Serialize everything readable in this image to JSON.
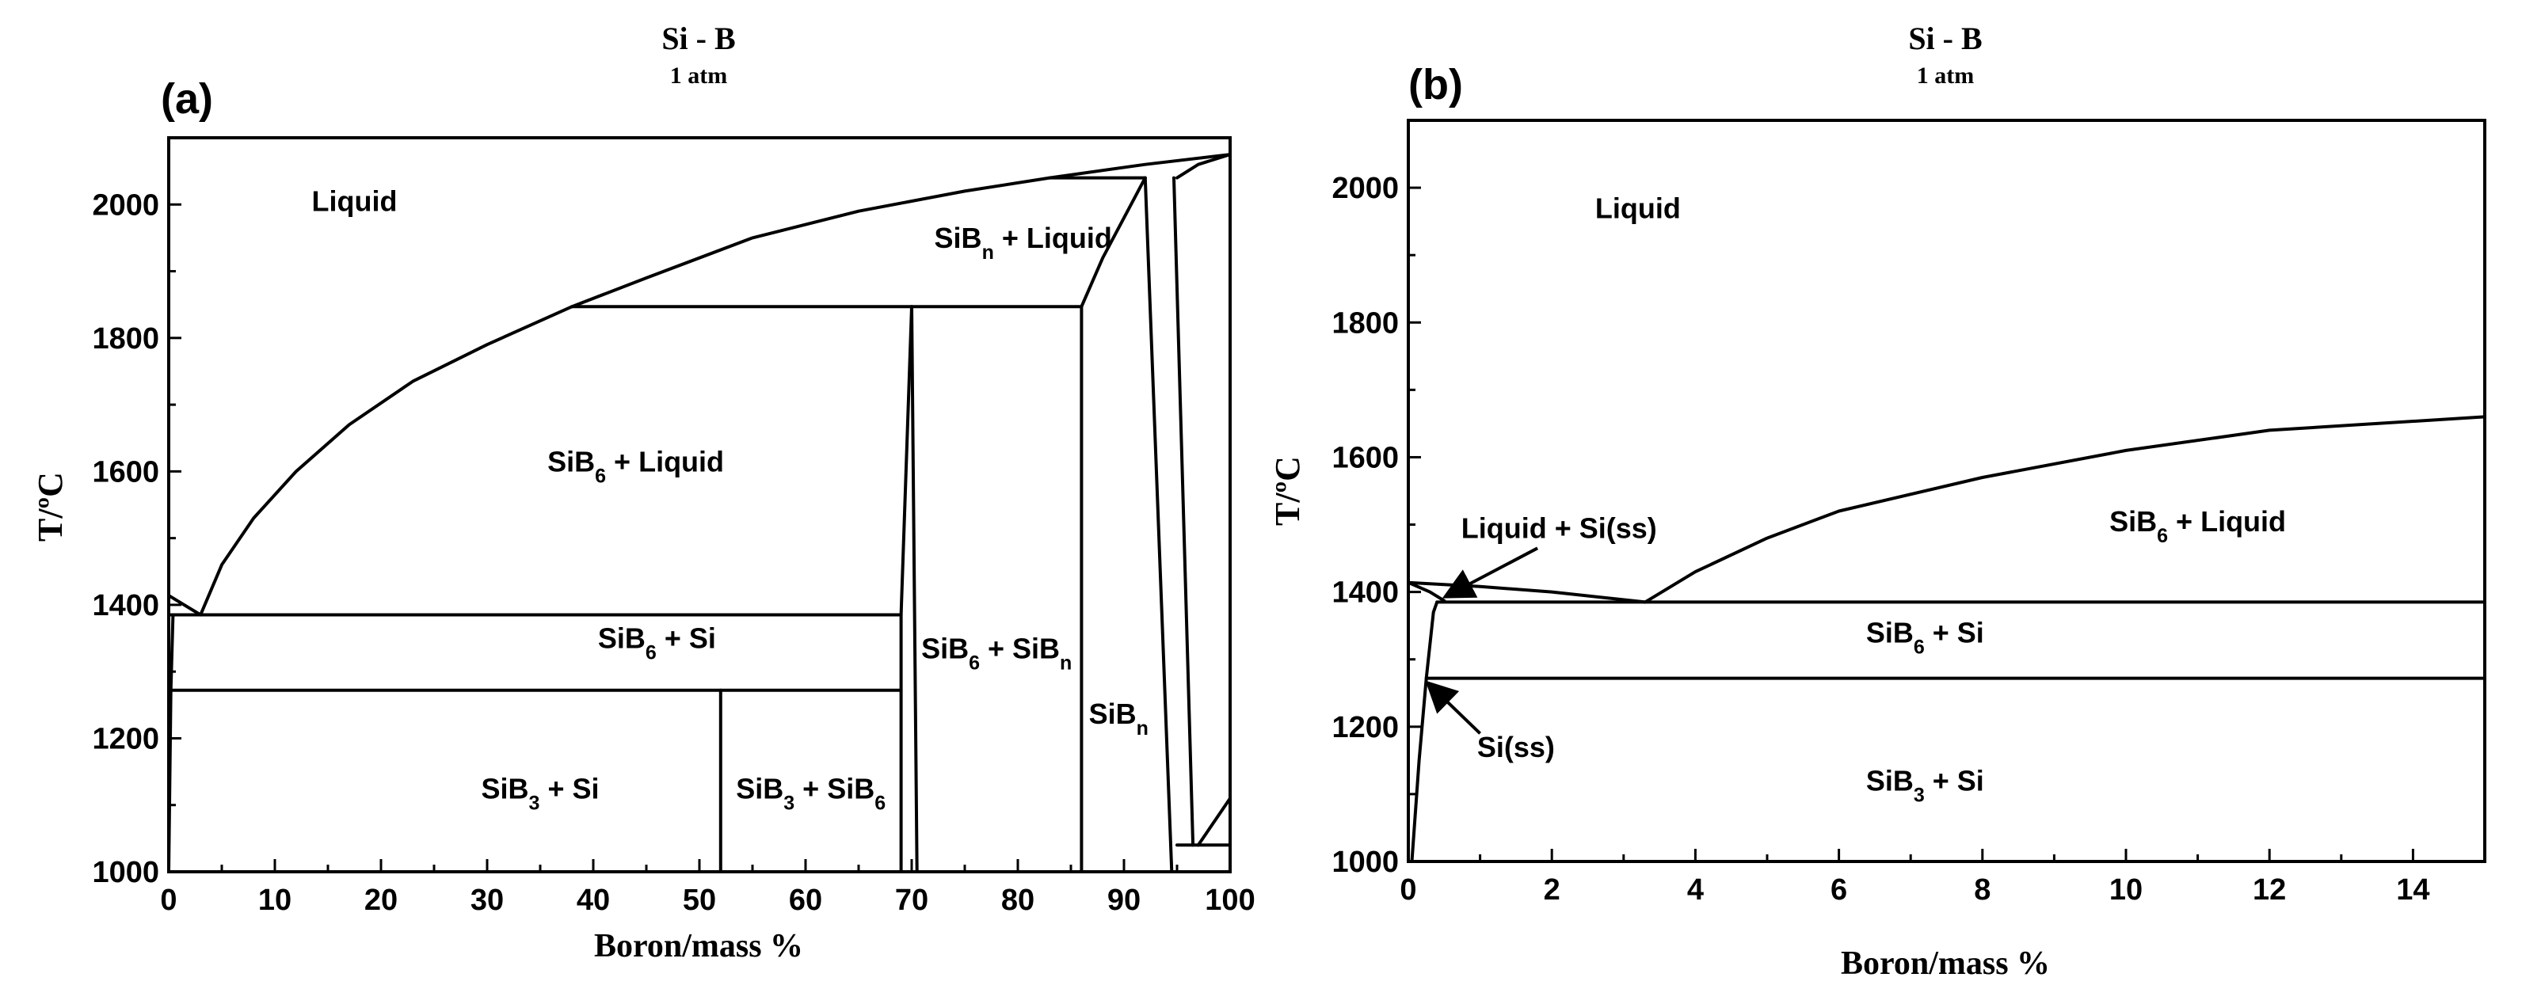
{
  "chart_data": [
    {
      "type": "line",
      "panel_label": "(a)",
      "title": "Si - B",
      "subtitle": "1 atm",
      "xlabel": "Boron/mass %",
      "ylabel": "T/ºC",
      "xlim": [
        0,
        100
      ],
      "ylim": [
        1000,
        2100
      ],
      "x_ticks": [
        "0",
        "10",
        "20",
        "30",
        "40",
        "50",
        "60",
        "70",
        "80",
        "90",
        "100"
      ],
      "y_ticks": [
        "1000",
        "1200",
        "1400",
        "1600",
        "1800",
        "2000"
      ],
      "grid": false,
      "series": [
        {
          "values": [
            [
              0,
              1414
            ],
            [
              3,
              1385
            ]
          ]
        },
        {
          "values": [
            [
              3,
              1385
            ],
            [
              5,
              1460
            ],
            [
              8,
              1530
            ],
            [
              12,
              1600
            ],
            [
              17,
              1670
            ],
            [
              23,
              1735
            ],
            [
              30,
              1790
            ],
            [
              38,
              1847
            ]
          ]
        },
        {
          "values": [
            [
              38,
              1847
            ],
            [
              45,
              1890
            ],
            [
              55,
              1950
            ],
            [
              65,
              1990
            ],
            [
              75,
              2020
            ],
            [
              83,
              2040
            ],
            [
              92,
              2060
            ],
            [
              100,
              2075
            ]
          ]
        },
        {
          "values": [
            [
              0,
              1000
            ],
            [
              0.2,
              1272
            ],
            [
              0.4,
              1385
            ]
          ]
        },
        {
          "values": [
            [
              0,
              1385
            ],
            [
              69,
              1385
            ]
          ]
        },
        {
          "values": [
            [
              0,
              1272
            ],
            [
              69,
              1272
            ]
          ]
        },
        {
          "values": [
            [
              38,
              1847
            ],
            [
              86,
              1847
            ]
          ]
        },
        {
          "values": [
            [
              83,
              2040
            ],
            [
              92,
              2040
            ]
          ]
        },
        {
          "values": [
            [
              95,
              2040
            ],
            [
              97,
              2060
            ],
            [
              100,
              2075
            ]
          ]
        },
        {
          "values": [
            [
              52,
              1000
            ],
            [
              52,
              1272
            ]
          ]
        },
        {
          "values": [
            [
              69,
              1000
            ],
            [
              69,
              1385
            ]
          ]
        },
        {
          "values": [
            [
              69,
              1385
            ],
            [
              70,
              1847
            ]
          ]
        },
        {
          "values": [
            [
              70,
              1847
            ],
            [
              70.5,
              1000
            ]
          ]
        },
        {
          "values": [
            [
              86,
              1847
            ],
            [
              86,
              1000
            ]
          ]
        },
        {
          "values": [
            [
              86,
              1847
            ],
            [
              88,
              1920
            ],
            [
              92,
              2040
            ]
          ]
        },
        {
          "values": [
            [
              92,
              2040
            ],
            [
              94.5,
              1000
            ]
          ]
        },
        {
          "values": [
            [
              94.7,
              2040
            ],
            [
              96.5,
              1040
            ]
          ]
        },
        {
          "values": [
            [
              95,
              1040
            ],
            [
              100,
              1040
            ]
          ]
        },
        {
          "values": [
            [
              97,
              1040
            ],
            [
              100,
              1110
            ]
          ]
        }
      ],
      "region_labels": [
        {
          "main": "Liquid",
          "sub": "",
          "after": "",
          "x": 17.5,
          "y": 1990
        },
        {
          "main": "SiB",
          "sub": "n",
          "after": " + Liquid",
          "x": 80.5,
          "y": 1935
        },
        {
          "main": "SiB",
          "sub": "6",
          "after": " + Liquid",
          "x": 44,
          "y": 1600
        },
        {
          "main": "SiB",
          "sub": "6",
          "after": " + Si",
          "x": 46,
          "y": 1335
        },
        {
          "main": "SiB",
          "sub": "6",
          "after": " + SiB",
          "after_sub": "n",
          "x": 78,
          "y": 1320
        },
        {
          "main": "SiB",
          "sub": "n",
          "after": "",
          "x": 89.5,
          "y": 1222
        },
        {
          "main": "SiB",
          "sub": "3",
          "after": " + Si",
          "x": 35,
          "y": 1110
        },
        {
          "main": "SiB",
          "sub": "3",
          "after": " + SiB",
          "after_sub": "6",
          "x": 60.5,
          "y": 1110
        }
      ]
    },
    {
      "type": "line",
      "panel_label": "(b)",
      "title": "Si - B",
      "subtitle": "1 atm",
      "xlabel": "Boron/mass %",
      "ylabel": "T/ºC",
      "xlim": [
        0,
        15
      ],
      "ylim": [
        1000,
        2100
      ],
      "x_ticks": [
        "0",
        "2",
        "4",
        "6",
        "8",
        "10",
        "12",
        "14"
      ],
      "y_ticks": [
        "1000",
        "1200",
        "1400",
        "1600",
        "1800",
        "2000"
      ],
      "grid": false,
      "series": [
        {
          "values": [
            [
              0,
              1414
            ],
            [
              0.3,
              1400
            ],
            [
              0.5,
              1387
            ]
          ]
        },
        {
          "values": [
            [
              0,
              1414
            ],
            [
              1,
              1408
            ],
            [
              2,
              1400
            ],
            [
              3.3,
              1385
            ]
          ]
        },
        {
          "values": [
            [
              3.3,
              1385
            ],
            [
              4,
              1430
            ],
            [
              5,
              1480
            ],
            [
              6,
              1520
            ],
            [
              8,
              1570
            ],
            [
              10,
              1610
            ],
            [
              12,
              1640
            ],
            [
              15,
              1660
            ]
          ]
        },
        {
          "values": [
            [
              0.4,
              1385
            ],
            [
              15,
              1385
            ]
          ]
        },
        {
          "values": [
            [
              0.25,
              1272
            ],
            [
              15,
              1272
            ]
          ]
        },
        {
          "values": [
            [
              0.05,
              1000
            ],
            [
              0.15,
              1150
            ],
            [
              0.25,
              1272
            ],
            [
              0.35,
              1370
            ],
            [
              0.4,
              1385
            ]
          ]
        }
      ],
      "region_labels": [
        {
          "main": "Liquid",
          "sub": "",
          "after": "",
          "x": 3.2,
          "y": 1955
        },
        {
          "main": "SiB",
          "sub": "6",
          "after": " + Liquid",
          "x": 11,
          "y": 1490
        },
        {
          "main": "SiB",
          "sub": "6",
          "after": " + Si",
          "x": 7.2,
          "y": 1325
        },
        {
          "main": "SiB",
          "sub": "3",
          "after": " + Si",
          "x": 7.2,
          "y": 1105
        },
        {
          "main": "Liquid + Si(ss)",
          "sub": "",
          "after": "",
          "x": 2.1,
          "y": 1480
        },
        {
          "main": "Si(ss)",
          "sub": "",
          "after": "",
          "x": 1.5,
          "y": 1155
        }
      ],
      "arrows": [
        {
          "from": [
            1.8,
            1465
          ],
          "to": [
            0.55,
            1395
          ]
        },
        {
          "from": [
            1.0,
            1190
          ],
          "to": [
            0.3,
            1262
          ]
        }
      ]
    }
  ]
}
